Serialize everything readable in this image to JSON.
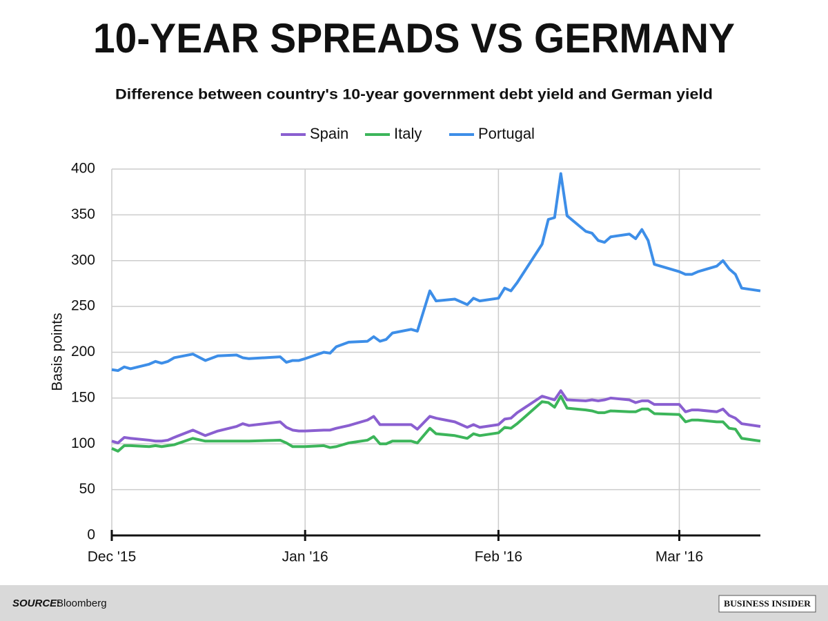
{
  "chart_data": {
    "type": "line",
    "title": "10-YEAR SPREADS VS GERMANY",
    "subtitle": "Difference between country's 10-year government debt yield and German yield",
    "y_label": "Basis points",
    "legend": "top",
    "grid": true,
    "x": [
      0,
      1,
      2,
      3,
      6,
      7,
      8,
      9,
      10,
      13,
      15,
      17,
      20,
      21,
      22,
      27,
      28,
      29,
      30,
      31,
      34,
      35,
      36,
      38,
      41,
      42,
      43,
      44,
      45,
      48,
      49,
      51,
      52,
      55,
      57,
      58,
      59,
      62,
      63,
      64,
      65,
      69,
      70,
      71,
      72,
      73,
      76,
      77,
      78,
      79,
      80,
      83,
      84,
      85,
      86,
      87,
      91,
      92,
      93,
      94,
      97,
      98,
      99,
      100,
      101,
      104
    ],
    "xlim": [
      0,
      104
    ],
    "xticks": [
      {
        "value": 0,
        "label": "Dec '15"
      },
      {
        "value": 31,
        "label": "Jan '16"
      },
      {
        "value": 62,
        "label": "Feb '16"
      },
      {
        "value": 91,
        "label": "Mar '16"
      }
    ],
    "ylim": [
      0,
      400
    ],
    "yticks": [
      0,
      50,
      100,
      150,
      200,
      250,
      300,
      350,
      400
    ],
    "series": [
      {
        "name": "Spain",
        "color": "#8a5fd0",
        "values": [
          103,
          101,
          107,
          106,
          104,
          103,
          103,
          104,
          107,
          115,
          109,
          114,
          119,
          122,
          120,
          124,
          118,
          115,
          114,
          114,
          115,
          115,
          117,
          120,
          126,
          130,
          121,
          121,
          121,
          121,
          116,
          130,
          128,
          124,
          118,
          121,
          118,
          121,
          127,
          128,
          134,
          152,
          150,
          148,
          158,
          148,
          147,
          148,
          147,
          148,
          150,
          148,
          145,
          147,
          147,
          143,
          143,
          135,
          137,
          137,
          135,
          138,
          131,
          128,
          122,
          119
        ]
      },
      {
        "name": "Italy",
        "color": "#3cb55a",
        "values": [
          95,
          92,
          98,
          98,
          97,
          98,
          97,
          98,
          99,
          106,
          103,
          103,
          103,
          103,
          103,
          104,
          101,
          97,
          97,
          97,
          98,
          96,
          97,
          101,
          104,
          108,
          100,
          100,
          103,
          103,
          101,
          117,
          111,
          109,
          106,
          111,
          109,
          112,
          118,
          117,
          122,
          146,
          145,
          140,
          152,
          139,
          137,
          136,
          134,
          134,
          136,
          135,
          135,
          138,
          138,
          133,
          132,
          124,
          126,
          126,
          124,
          124,
          117,
          116,
          106,
          103
        ]
      },
      {
        "name": "Portugal",
        "color": "#3d8ee8",
        "values": [
          181,
          180,
          184,
          182,
          187,
          190,
          188,
          190,
          194,
          198,
          191,
          196,
          197,
          194,
          193,
          195,
          189,
          191,
          191,
          193,
          200,
          199,
          206,
          211,
          212,
          217,
          212,
          214,
          221,
          225,
          223,
          267,
          256,
          258,
          252,
          259,
          256,
          259,
          270,
          267,
          276,
          318,
          345,
          347,
          395,
          349,
          332,
          330,
          322,
          320,
          326,
          329,
          324,
          334,
          322,
          296,
          288,
          285,
          285,
          288,
          294,
          300,
          291,
          285,
          270,
          267
        ]
      }
    ]
  },
  "footer": {
    "source_label": "SOURCE:",
    "source": "Bloomberg",
    "logo": "BUSINESS INSIDER"
  }
}
